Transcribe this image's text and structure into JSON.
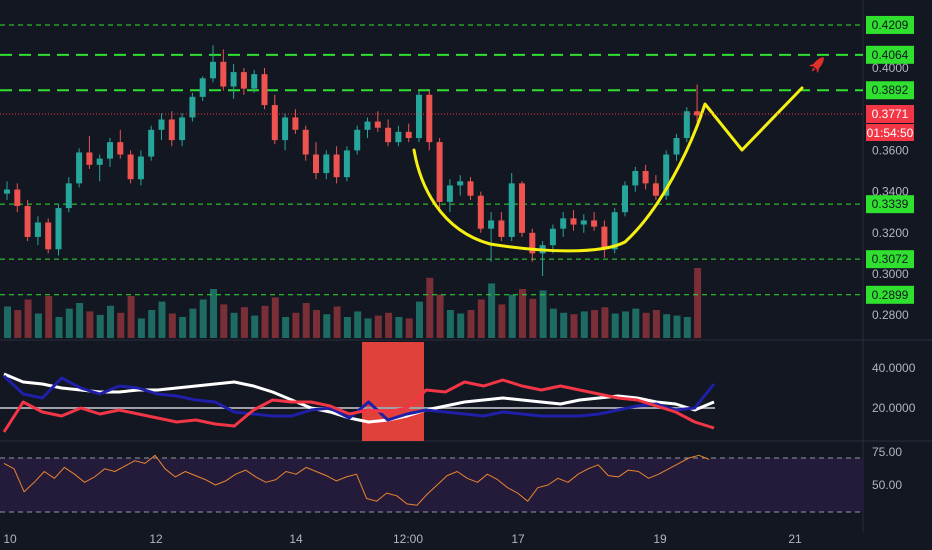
{
  "chart_data": {
    "type": "candlestick",
    "price_axis": {
      "ticks": [
        "0.4000",
        "0.3600",
        "0.3400",
        "0.3200",
        "0.3000",
        "0.2800"
      ],
      "tick_values": [
        0.4,
        0.36,
        0.34,
        0.32,
        0.3,
        0.28
      ]
    },
    "levels": [
      {
        "value": 0.4209,
        "label": "0.4209",
        "style": "dashed-thin"
      },
      {
        "value": 0.4064,
        "label": "0.4064",
        "style": "dashed-thick"
      },
      {
        "value": 0.3892,
        "label": "0.3892",
        "style": "dashed-thick"
      },
      {
        "value": 0.3339,
        "label": "0.3339",
        "style": "dashed-thin"
      },
      {
        "value": 0.3072,
        "label": "0.3072",
        "style": "dashed-thin"
      },
      {
        "value": 0.2899,
        "label": "0.2899",
        "style": "dashed-thin"
      }
    ],
    "current_price": {
      "value": 0.3771,
      "label": "0.3771",
      "countdown": "01:54:50"
    },
    "x_ticks": [
      "10",
      "12",
      "14",
      "12:00",
      "17",
      "19",
      "21"
    ],
    "adx_panel": {
      "ticks": [
        "40.0000",
        "20.0000"
      ],
      "tick_values": [
        40,
        20
      ],
      "reference_level": 20,
      "series": [
        {
          "color": "#ffffff",
          "values": [
            37,
            33,
            32,
            30,
            29,
            28,
            28,
            29,
            29,
            30,
            31,
            32,
            33,
            31,
            28,
            24,
            20,
            18,
            15,
            13,
            14,
            16,
            19,
            21,
            23,
            24,
            25,
            24,
            23,
            22,
            24,
            25,
            26,
            25,
            23,
            22,
            19,
            23
          ]
        },
        {
          "color": "#1f1fa8",
          "values": [
            36,
            27,
            25,
            35,
            30,
            27,
            31,
            30,
            27,
            26,
            24,
            23,
            18,
            17,
            16,
            16,
            19,
            20,
            15,
            23,
            14,
            17,
            19,
            18,
            17,
            16,
            18,
            17,
            16,
            16,
            16,
            17,
            19,
            21,
            22,
            19,
            20,
            32
          ]
        },
        {
          "color": "#f23645",
          "values": [
            8,
            23,
            18,
            16,
            20,
            17,
            19,
            17,
            15,
            13,
            14,
            12,
            11,
            19,
            24,
            23,
            23,
            21,
            17,
            19,
            18,
            20,
            29,
            28,
            33,
            31,
            34,
            31,
            29,
            31,
            29,
            27,
            25,
            24,
            21,
            18,
            13,
            10
          ]
        }
      ]
    },
    "rsi_panel": {
      "ticks": [
        "75.00",
        "50.00"
      ],
      "upper": 70,
      "lower": 30,
      "values": [
        66,
        62,
        45,
        52,
        60,
        55,
        63,
        58,
        52,
        56,
        62,
        60,
        64,
        68,
        66,
        72,
        62,
        56,
        60,
        57,
        54,
        50,
        53,
        58,
        61,
        56,
        52,
        54,
        60,
        58,
        63,
        60,
        57,
        53,
        56,
        58,
        40,
        38,
        44,
        42,
        36,
        35,
        43,
        50,
        57,
        60,
        55,
        52,
        58,
        54,
        48,
        44,
        38,
        48,
        50,
        55,
        52,
        58,
        62,
        65,
        57,
        56,
        61,
        60,
        55,
        58,
        62,
        66,
        70,
        72,
        69
      ]
    },
    "candles": [
      {
        "o": 0.339,
        "h": 0.345,
        "l": 0.336,
        "c": 0.341
      },
      {
        "o": 0.341,
        "h": 0.344,
        "l": 0.33,
        "c": 0.333
      },
      {
        "o": 0.333,
        "h": 0.336,
        "l": 0.316,
        "c": 0.318
      },
      {
        "o": 0.318,
        "h": 0.328,
        "l": 0.314,
        "c": 0.325
      },
      {
        "o": 0.325,
        "h": 0.327,
        "l": 0.31,
        "c": 0.312
      },
      {
        "o": 0.312,
        "h": 0.334,
        "l": 0.309,
        "c": 0.332
      },
      {
        "o": 0.332,
        "h": 0.347,
        "l": 0.33,
        "c": 0.344
      },
      {
        "o": 0.344,
        "h": 0.361,
        "l": 0.342,
        "c": 0.359
      },
      {
        "o": 0.359,
        "h": 0.367,
        "l": 0.351,
        "c": 0.353
      },
      {
        "o": 0.353,
        "h": 0.358,
        "l": 0.345,
        "c": 0.356
      },
      {
        "o": 0.356,
        "h": 0.366,
        "l": 0.352,
        "c": 0.364
      },
      {
        "o": 0.364,
        "h": 0.37,
        "l": 0.356,
        "c": 0.358
      },
      {
        "o": 0.358,
        "h": 0.36,
        "l": 0.344,
        "c": 0.346
      },
      {
        "o": 0.346,
        "h": 0.36,
        "l": 0.343,
        "c": 0.357
      },
      {
        "o": 0.357,
        "h": 0.372,
        "l": 0.355,
        "c": 0.37
      },
      {
        "o": 0.37,
        "h": 0.378,
        "l": 0.365,
        "c": 0.375
      },
      {
        "o": 0.375,
        "h": 0.379,
        "l": 0.362,
        "c": 0.365
      },
      {
        "o": 0.365,
        "h": 0.378,
        "l": 0.362,
        "c": 0.376
      },
      {
        "o": 0.376,
        "h": 0.388,
        "l": 0.374,
        "c": 0.386
      },
      {
        "o": 0.386,
        "h": 0.396,
        "l": 0.384,
        "c": 0.395
      },
      {
        "o": 0.395,
        "h": 0.411,
        "l": 0.393,
        "c": 0.403
      },
      {
        "o": 0.403,
        "h": 0.409,
        "l": 0.389,
        "c": 0.391
      },
      {
        "o": 0.391,
        "h": 0.402,
        "l": 0.385,
        "c": 0.398
      },
      {
        "o": 0.398,
        "h": 0.4,
        "l": 0.387,
        "c": 0.39
      },
      {
        "o": 0.39,
        "h": 0.399,
        "l": 0.388,
        "c": 0.397
      },
      {
        "o": 0.397,
        "h": 0.4,
        "l": 0.38,
        "c": 0.382
      },
      {
        "o": 0.382,
        "h": 0.387,
        "l": 0.363,
        "c": 0.365
      },
      {
        "o": 0.365,
        "h": 0.378,
        "l": 0.36,
        "c": 0.376
      },
      {
        "o": 0.376,
        "h": 0.38,
        "l": 0.368,
        "c": 0.37
      },
      {
        "o": 0.37,
        "h": 0.372,
        "l": 0.355,
        "c": 0.358
      },
      {
        "o": 0.358,
        "h": 0.364,
        "l": 0.346,
        "c": 0.349
      },
      {
        "o": 0.349,
        "h": 0.36,
        "l": 0.346,
        "c": 0.358
      },
      {
        "o": 0.358,
        "h": 0.362,
        "l": 0.344,
        "c": 0.347
      },
      {
        "o": 0.347,
        "h": 0.362,
        "l": 0.345,
        "c": 0.36
      },
      {
        "o": 0.36,
        "h": 0.372,
        "l": 0.358,
        "c": 0.37
      },
      {
        "o": 0.37,
        "h": 0.376,
        "l": 0.366,
        "c": 0.374
      },
      {
        "o": 0.374,
        "h": 0.379,
        "l": 0.369,
        "c": 0.371
      },
      {
        "o": 0.371,
        "h": 0.375,
        "l": 0.362,
        "c": 0.364
      },
      {
        "o": 0.364,
        "h": 0.372,
        "l": 0.362,
        "c": 0.369
      },
      {
        "o": 0.369,
        "h": 0.373,
        "l": 0.364,
        "c": 0.366
      },
      {
        "o": 0.366,
        "h": 0.389,
        "l": 0.364,
        "c": 0.387
      },
      {
        "o": 0.387,
        "h": 0.389,
        "l": 0.36,
        "c": 0.364
      },
      {
        "o": 0.364,
        "h": 0.366,
        "l": 0.332,
        "c": 0.335
      },
      {
        "o": 0.335,
        "h": 0.346,
        "l": 0.33,
        "c": 0.343
      },
      {
        "o": 0.343,
        "h": 0.348,
        "l": 0.338,
        "c": 0.345
      },
      {
        "o": 0.345,
        "h": 0.347,
        "l": 0.336,
        "c": 0.338
      },
      {
        "o": 0.338,
        "h": 0.34,
        "l": 0.32,
        "c": 0.322
      },
      {
        "o": 0.322,
        "h": 0.33,
        "l": 0.306,
        "c": 0.326
      },
      {
        "o": 0.326,
        "h": 0.33,
        "l": 0.316,
        "c": 0.318
      },
      {
        "o": 0.318,
        "h": 0.349,
        "l": 0.316,
        "c": 0.344
      },
      {
        "o": 0.344,
        "h": 0.345,
        "l": 0.318,
        "c": 0.32
      },
      {
        "o": 0.32,
        "h": 0.322,
        "l": 0.306,
        "c": 0.31
      },
      {
        "o": 0.31,
        "h": 0.316,
        "l": 0.299,
        "c": 0.314
      },
      {
        "o": 0.314,
        "h": 0.324,
        "l": 0.31,
        "c": 0.322
      },
      {
        "o": 0.322,
        "h": 0.33,
        "l": 0.318,
        "c": 0.327
      },
      {
        "o": 0.327,
        "h": 0.331,
        "l": 0.321,
        "c": 0.324
      },
      {
        "o": 0.324,
        "h": 0.329,
        "l": 0.32,
        "c": 0.326
      },
      {
        "o": 0.326,
        "h": 0.33,
        "l": 0.321,
        "c": 0.323
      },
      {
        "o": 0.323,
        "h": 0.326,
        "l": 0.308,
        "c": 0.312
      },
      {
        "o": 0.312,
        "h": 0.332,
        "l": 0.31,
        "c": 0.33
      },
      {
        "o": 0.33,
        "h": 0.345,
        "l": 0.328,
        "c": 0.343
      },
      {
        "o": 0.343,
        "h": 0.352,
        "l": 0.34,
        "c": 0.35
      },
      {
        "o": 0.35,
        "h": 0.353,
        "l": 0.341,
        "c": 0.344
      },
      {
        "o": 0.344,
        "h": 0.348,
        "l": 0.336,
        "c": 0.338
      },
      {
        "o": 0.338,
        "h": 0.36,
        "l": 0.336,
        "c": 0.358
      },
      {
        "o": 0.358,
        "h": 0.368,
        "l": 0.355,
        "c": 0.366
      },
      {
        "o": 0.366,
        "h": 0.381,
        "l": 0.364,
        "c": 0.379
      },
      {
        "o": 0.379,
        "h": 0.392,
        "l": 0.374,
        "c": 0.377
      }
    ],
    "volumes": [
      0.45,
      0.4,
      0.55,
      0.35,
      0.6,
      0.3,
      0.42,
      0.5,
      0.38,
      0.33,
      0.46,
      0.36,
      0.6,
      0.28,
      0.4,
      0.52,
      0.35,
      0.3,
      0.42,
      0.55,
      0.7,
      0.48,
      0.36,
      0.44,
      0.32,
      0.46,
      0.58,
      0.3,
      0.36,
      0.5,
      0.4,
      0.34,
      0.45,
      0.3,
      0.38,
      0.28,
      0.32,
      0.36,
      0.3,
      0.28,
      0.52,
      0.86,
      0.62,
      0.4,
      0.35,
      0.4,
      0.55,
      0.78,
      0.48,
      0.62,
      0.7,
      0.56,
      0.68,
      0.42,
      0.36,
      0.34,
      0.38,
      0.4,
      0.44,
      0.35,
      0.38,
      0.42,
      0.36,
      0.4,
      0.34,
      0.32,
      0.3,
      1.0
    ]
  }
}
